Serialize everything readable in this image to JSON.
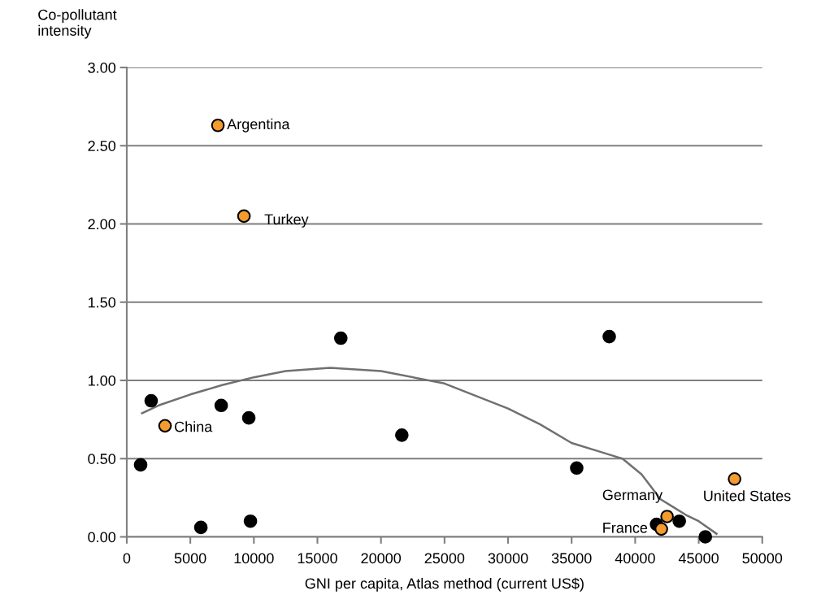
{
  "chart_data": {
    "type": "scatter",
    "xlabel": "GNI per capita, Atlas method (current US$)",
    "ylabel": "Co-pollutant intensity",
    "xlim": [
      0,
      50000
    ],
    "xticks": [
      0,
      5000,
      10000,
      15000,
      20000,
      25000,
      30000,
      35000,
      40000,
      45000,
      50000
    ],
    "ylim": [
      0,
      3
    ],
    "yticks": [
      {
        "value": 0,
        "label": "0.00"
      },
      {
        "value": 0.5,
        "label": "0.50"
      },
      {
        "value": 1,
        "label": "1.00"
      },
      {
        "value": 1.5,
        "label": "1.50"
      },
      {
        "value": 2,
        "label": "2.00"
      },
      {
        "value": 2.5,
        "label": "2.50"
      },
      {
        "value": 3,
        "label": "3.00"
      }
    ],
    "grid": "y",
    "marker": "circle",
    "series": [
      {
        "color": "#000000",
        "x": [
          1090,
          1920,
          5830,
          7430,
          9600,
          9730,
          16840,
          21640,
          35400,
          37960,
          41680,
          43470,
          45520
        ],
        "values": [
          0.46,
          0.87,
          0.06,
          0.84,
          0.76,
          0.1,
          1.27,
          0.65,
          0.44,
          1.28,
          0.08,
          0.1,
          0.0
        ]
      },
      {
        "color": "#f39b2f",
        "x": [
          7170,
          9220,
          3010,
          42510,
          42060,
          47820
        ],
        "values": [
          2.63,
          2.05,
          0.71,
          0.13,
          0.05,
          0.37
        ]
      },
      {
        "type": "line",
        "color": "#707070",
        "marker": "none",
        "x": [
          1200,
          2500,
          5000,
          7500,
          10000,
          12500,
          16000,
          20000,
          25000,
          30000,
          32500,
          35000,
          37000,
          39000,
          40500,
          42000,
          43000,
          44000,
          45000,
          46400
        ],
        "values": [
          0.79,
          0.84,
          0.91,
          0.97,
          1.02,
          1.06,
          1.08,
          1.06,
          0.98,
          0.82,
          0.72,
          0.6,
          0.55,
          0.5,
          0.4,
          0.24,
          0.19,
          0.14,
          0.1,
          0.02
        ]
      }
    ],
    "annotations": [
      {
        "text": "Argentina",
        "x": 7170,
        "y": 2.63
      },
      {
        "text": "Turkey",
        "x": 9220,
        "y": 2.05
      },
      {
        "text": "China",
        "x": 3010,
        "y": 0.71
      },
      {
        "text": "Germany",
        "x": 42510,
        "y": 0.13
      },
      {
        "text": "France",
        "x": 42060,
        "y": 0.05
      },
      {
        "text": "United States",
        "x": 47820,
        "y": 0.37
      }
    ]
  }
}
